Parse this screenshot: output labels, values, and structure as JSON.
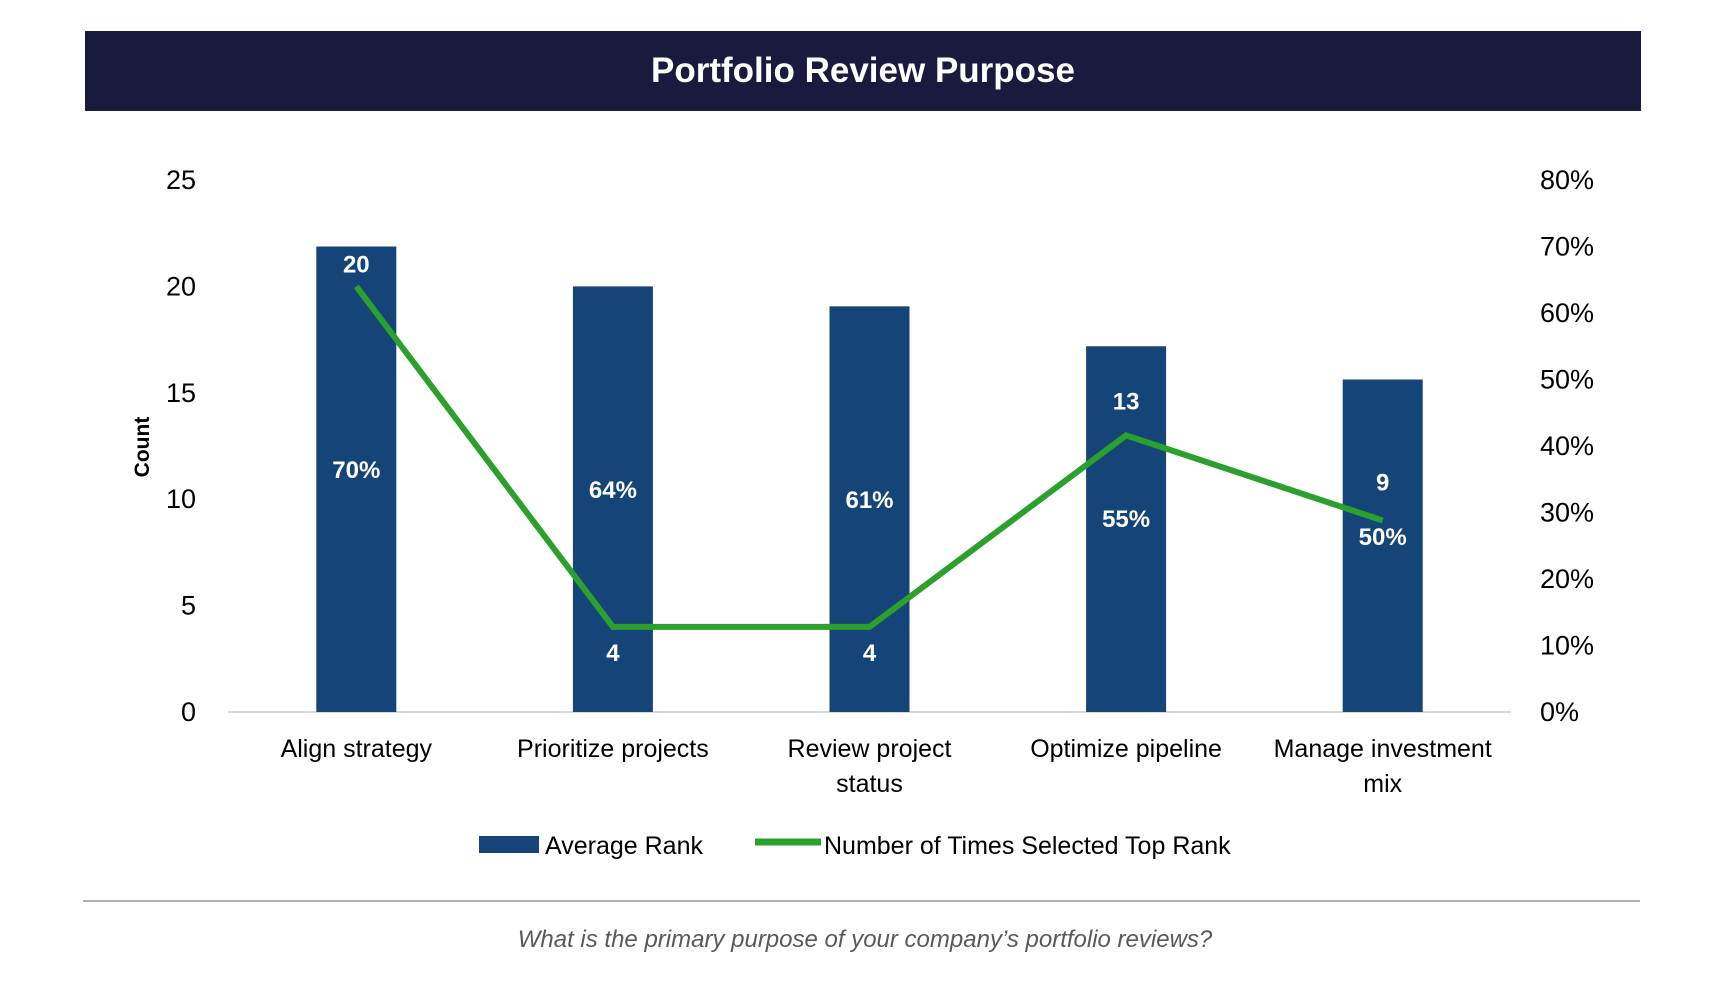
{
  "chart_data": {
    "type": "bar+line",
    "title": "Portfolio Review Purpose",
    "categories": [
      "Align strategy",
      "Prioritize projects",
      "Review project status",
      "Optimize pipeline",
      "Manage investment mix"
    ],
    "series": [
      {
        "name": "Average Rank",
        "kind": "bar",
        "axis": "right",
        "values": [
          70,
          64,
          61,
          55,
          50
        ],
        "labels": [
          "70%",
          "64%",
          "61%",
          "55%",
          "50%"
        ],
        "color": "#154578"
      },
      {
        "name": "Number of Times Selected Top Rank",
        "kind": "line",
        "axis": "left",
        "values": [
          20,
          4,
          4,
          13,
          9
        ],
        "labels": [
          "20",
          "4",
          "4",
          "13",
          "9"
        ],
        "color": "#2ca02c"
      }
    ],
    "ylabel": "Count",
    "ylim": [
      0,
      25
    ],
    "yticks": [
      "0",
      "5",
      "10",
      "15",
      "20",
      "25"
    ],
    "y2lim": [
      0,
      80
    ],
    "y2ticks": [
      "0%",
      "10%",
      "20%",
      "30%",
      "40%",
      "50%",
      "60%",
      "70%",
      "80%"
    ],
    "grid": false,
    "legend": "bottom"
  },
  "footnote": "What is the primary purpose of your company’s portfolio reviews?"
}
